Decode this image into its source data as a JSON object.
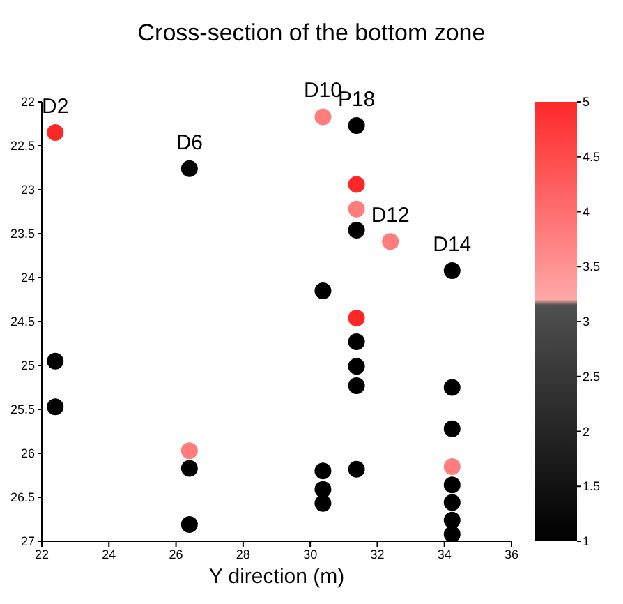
{
  "chart_data": {
    "type": "scatter",
    "title": "Cross-section of the bottom zone",
    "xlabel": "Y direction (m)",
    "x": [
      22.4,
      22.4,
      22.4,
      26.4,
      26.4,
      26.4,
      26.4,
      30.38,
      30.38,
      30.38,
      30.38,
      30.38,
      31.38,
      31.38,
      31.38,
      31.38,
      31.38,
      31.38,
      31.38,
      31.38,
      31.38,
      32.39,
      34.23,
      34.23,
      34.23,
      34.23,
      34.23,
      34.23,
      34.23,
      34.23
    ],
    "values": [
      22.35,
      24.95,
      25.47,
      22.76,
      25.97,
      26.17,
      26.81,
      22.17,
      24.15,
      26.2,
      26.41,
      26.57,
      22.27,
      22.94,
      23.22,
      23.46,
      24.46,
      24.73,
      25.01,
      25.23,
      26.18,
      23.59,
      23.92,
      25.25,
      25.72,
      26.15,
      26.36,
      26.56,
      26.76,
      26.92
    ],
    "cvalues": [
      5,
      1,
      1,
      1,
      3.8,
      1,
      1,
      3.8,
      1,
      1,
      1,
      1,
      1,
      5,
      3.8,
      1,
      5,
      1,
      1,
      1,
      1,
      3.8,
      1,
      1,
      1,
      3.8,
      1,
      1,
      1,
      1
    ],
    "clim": [
      1,
      5
    ],
    "cticks": [
      1,
      1.5,
      2,
      2.5,
      3,
      3.5,
      4,
      4.5,
      5
    ],
    "xlim": [
      22,
      36
    ],
    "xticks": [
      22,
      24,
      26,
      28,
      30,
      32,
      34,
      36
    ],
    "ylim": [
      27,
      22
    ],
    "yticks": [
      22,
      22.5,
      23,
      23.5,
      24,
      24.5,
      25,
      25.5,
      26,
      26.5,
      27
    ],
    "annotations": [
      {
        "text": "D2",
        "x": 22.4,
        "y": 22.35
      },
      {
        "text": "D6",
        "x": 26.4,
        "y": 22.76
      },
      {
        "text": "D10",
        "x": 30.38,
        "y": 22.17
      },
      {
        "text": "P18",
        "x": 31.38,
        "y": 22.27
      },
      {
        "text": "D12",
        "x": 32.39,
        "y": 23.59
      },
      {
        "text": "D14",
        "x": 34.23,
        "y": 23.92
      }
    ],
    "grid": false,
    "legend": false,
    "marker": "circle"
  }
}
